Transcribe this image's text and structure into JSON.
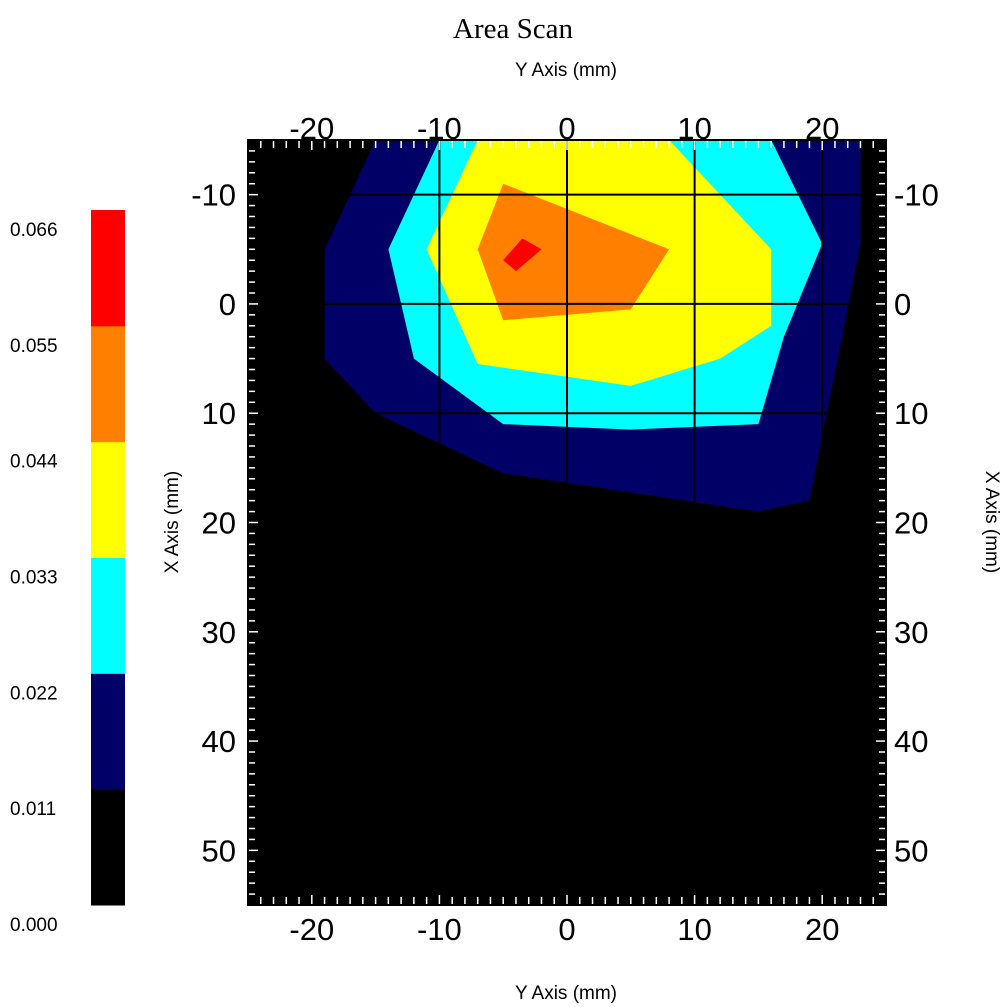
{
  "chart_data": {
    "type": "contour",
    "title": "Area Scan",
    "xlabel": "Y Axis (mm)",
    "ylabel": "X Axis (mm)",
    "xlim": [
      -25,
      25
    ],
    "ylim": [
      -15,
      55
    ],
    "y_inverted": true,
    "x_ticks": [
      "-20",
      "-10",
      "0",
      "10",
      "20"
    ],
    "y_ticks": [
      "-10",
      "0",
      "10",
      "20",
      "30",
      "40",
      "50"
    ],
    "x_tick_values": [
      -20,
      -10,
      0,
      10,
      20
    ],
    "y_tick_values": [
      -10,
      0,
      10,
      20,
      30,
      40,
      50
    ],
    "grid": true,
    "background_color": "#000000",
    "colorbar": {
      "levels": [
        0.0,
        0.011,
        0.022,
        0.033,
        0.044,
        0.055,
        0.066
      ],
      "labels": [
        "0.000",
        "0.011",
        "0.022",
        "0.033",
        "0.044",
        "0.055",
        "0.066"
      ],
      "colors": [
        "#000000",
        "#000066",
        "#00ffff",
        "#ffff00",
        "#ff8000",
        "#ff0000"
      ]
    },
    "contours": [
      {
        "level": "0.011-0.022",
        "color": "#000066",
        "points": [
          [
            -15,
            -15
          ],
          [
            23,
            -15
          ],
          [
            23,
            -5.5
          ],
          [
            19,
            18
          ],
          [
            15,
            19
          ],
          [
            -5,
            15.5
          ],
          [
            -15,
            10
          ],
          [
            -19,
            5
          ],
          [
            -19,
            -5
          ]
        ]
      },
      {
        "level": "0.022-0.033",
        "color": "#00ffff",
        "points": [
          [
            -10,
            -15
          ],
          [
            16,
            -15
          ],
          [
            20,
            -5.5
          ],
          [
            17,
            3
          ],
          [
            15,
            11
          ],
          [
            5,
            11.5
          ],
          [
            -5,
            11
          ],
          [
            -12,
            5
          ],
          [
            -14,
            -5
          ]
        ]
      },
      {
        "level": "0.033-0.044",
        "color": "#ffff00",
        "points": [
          [
            -7,
            -15
          ],
          [
            8,
            -15
          ],
          [
            16,
            -5
          ],
          [
            16,
            2
          ],
          [
            12,
            5
          ],
          [
            5,
            7.5
          ],
          [
            -7,
            5.5
          ],
          [
            -11,
            -5
          ]
        ]
      },
      {
        "level": "0.044-0.055",
        "color": "#ff8000",
        "points": [
          [
            -7,
            -5
          ],
          [
            -5,
            -11
          ],
          [
            8,
            -5
          ],
          [
            5,
            0.5
          ],
          [
            -5,
            1.5
          ]
        ]
      },
      {
        "level": "0.055-0.066",
        "color": "#ff0000",
        "points": [
          [
            -5,
            -4
          ],
          [
            -3.5,
            -6
          ],
          [
            -2,
            -5
          ],
          [
            -4,
            -3
          ]
        ]
      }
    ]
  }
}
